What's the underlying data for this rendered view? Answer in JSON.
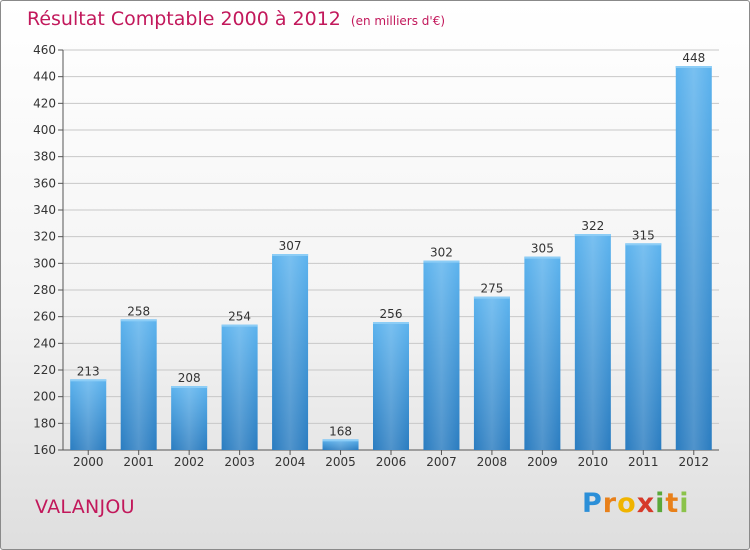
{
  "header": {
    "title": "Résultat Comptable 2000 à 2012",
    "unit": "(en milliers d'€)"
  },
  "commune": "VALANJOU",
  "logo": {
    "text": "Proxiti",
    "letters": [
      "P",
      "r",
      "o",
      "x",
      "i",
      "t",
      "i"
    ],
    "colors": [
      "#2b8fd8",
      "#e8801a",
      "#f0b400",
      "#d63a2a",
      "#5aa83a",
      "#e8801a",
      "#8bc34a"
    ]
  },
  "colors": {
    "bar": "#3b9ae0",
    "title": "#c2185b",
    "grid": "#c8c8c8"
  },
  "chart_data": {
    "type": "bar",
    "title": "Résultat Comptable 2000 à 2012",
    "xlabel": "",
    "ylabel": "",
    "categories": [
      "2000",
      "2001",
      "2002",
      "2003",
      "2004",
      "2005",
      "2006",
      "2007",
      "2008",
      "2009",
      "2010",
      "2011",
      "2012"
    ],
    "values": [
      213,
      258,
      208,
      254,
      307,
      168,
      256,
      302,
      275,
      305,
      322,
      315,
      448
    ],
    "ylim": [
      160,
      460
    ],
    "yticks": [
      160,
      180,
      200,
      220,
      240,
      260,
      280,
      300,
      320,
      340,
      360,
      380,
      400,
      420,
      440,
      460
    ],
    "grid": true,
    "data_labels": true
  }
}
